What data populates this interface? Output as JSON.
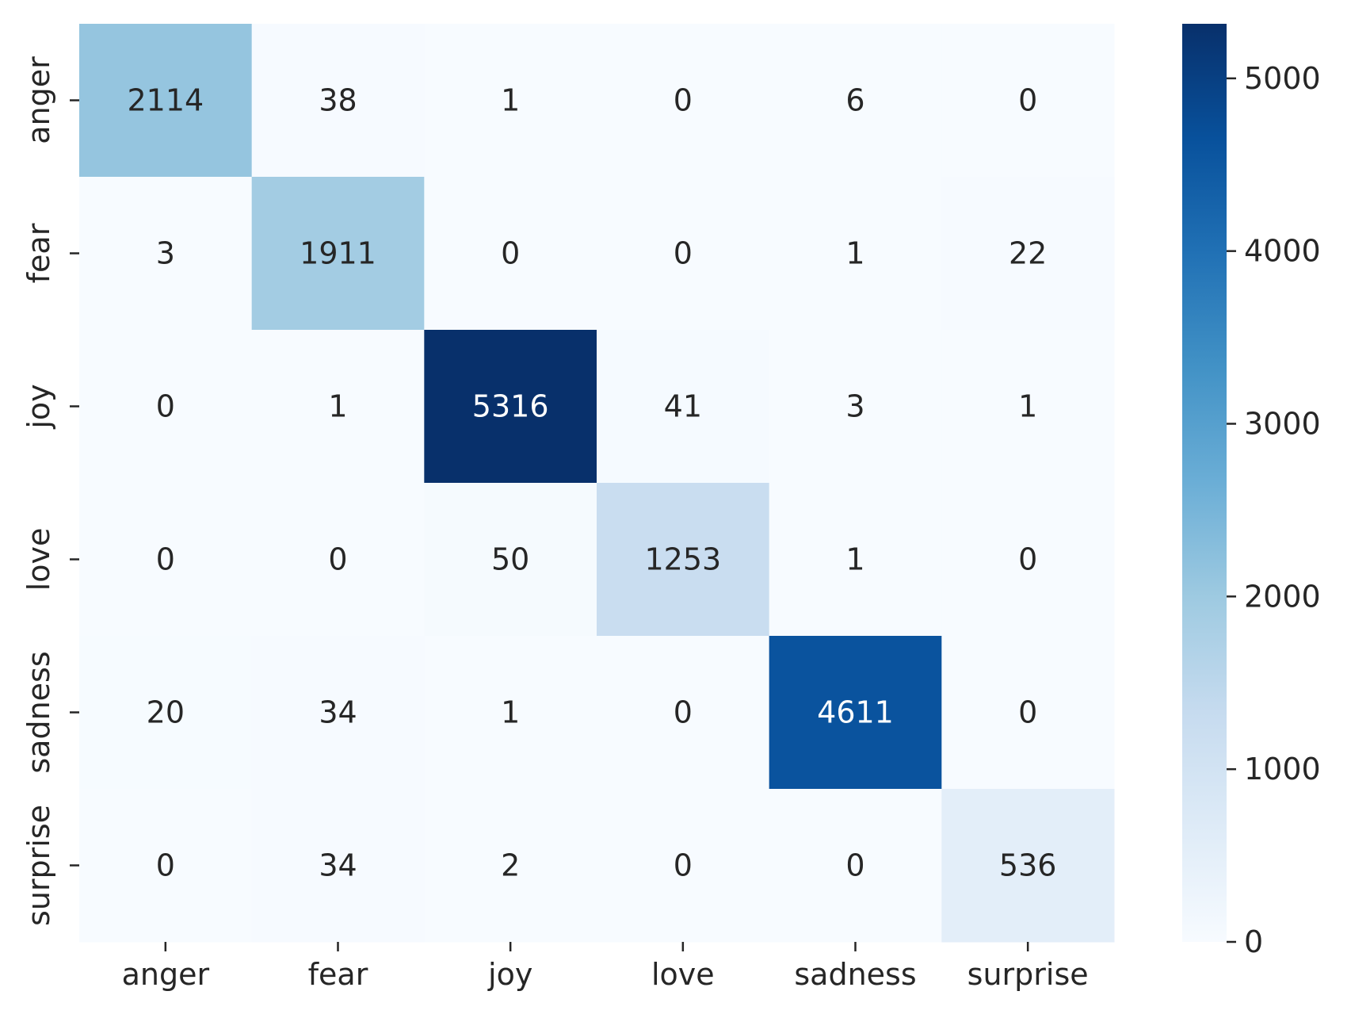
{
  "chart_data": {
    "type": "heatmap",
    "title": "",
    "xlabel": "",
    "ylabel": "",
    "x_categories": [
      "anger",
      "fear",
      "joy",
      "love",
      "sadness",
      "surprise"
    ],
    "y_categories": [
      "anger",
      "fear",
      "joy",
      "love",
      "sadness",
      "surprise"
    ],
    "values": [
      [
        2114,
        38,
        1,
        0,
        6,
        0
      ],
      [
        3,
        1911,
        0,
        0,
        1,
        22
      ],
      [
        0,
        1,
        5316,
        41,
        3,
        1
      ],
      [
        0,
        0,
        50,
        1253,
        1,
        0
      ],
      [
        20,
        34,
        1,
        0,
        4611,
        0
      ],
      [
        0,
        34,
        2,
        0,
        0,
        536
      ]
    ],
    "colormap": "Blues",
    "colorbar": {
      "min": 0,
      "max": 5316,
      "ticks": [
        0,
        1000,
        2000,
        3000,
        4000,
        5000
      ],
      "tick_labels": [
        "0",
        "1000",
        "2000",
        "3000",
        "4000",
        "5000"
      ]
    },
    "annotations": true,
    "grid": false
  }
}
